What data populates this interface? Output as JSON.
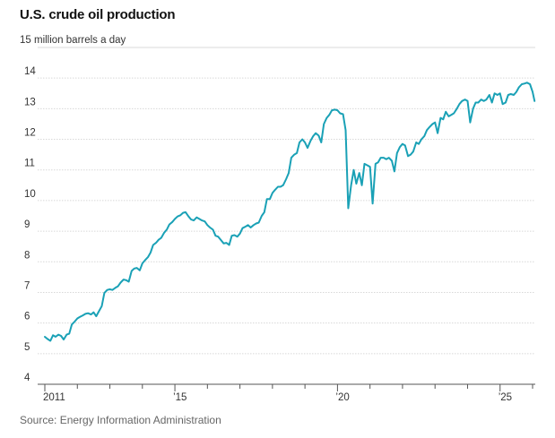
{
  "title": "U.S. crude oil production",
  "source": "Source: Energy Information Administration",
  "chart_data": {
    "type": "line",
    "title": "U.S. crude oil production",
    "ylabel": "million barrels a day",
    "unit_label": "15 million barrels a day",
    "xlabel": "",
    "ylim": [
      4,
      15
    ],
    "y_ticks": [
      4,
      5,
      6,
      7,
      8,
      9,
      10,
      11,
      12,
      13,
      14
    ],
    "xlim": [
      2011.0,
      2026.0
    ],
    "x_ticks": [
      {
        "year": 2011,
        "label": "2011"
      },
      {
        "year": 2015,
        "label": "’15"
      },
      {
        "year": 2020,
        "label": "’20"
      },
      {
        "year": 2025,
        "label": "’25"
      }
    ],
    "x_minor_ticks": [
      2012,
      2013,
      2014,
      2016,
      2017,
      2018,
      2019,
      2021,
      2022,
      2023,
      2024,
      2026
    ],
    "line_color": "#1aa1b6",
    "series": [
      {
        "name": "U.S. crude oil production",
        "points": [
          [
            2011.0,
            5.55
          ],
          [
            2011.08,
            5.48
          ],
          [
            2011.17,
            5.42
          ],
          [
            2011.25,
            5.6
          ],
          [
            2011.33,
            5.55
          ],
          [
            2011.42,
            5.62
          ],
          [
            2011.5,
            5.58
          ],
          [
            2011.58,
            5.46
          ],
          [
            2011.67,
            5.62
          ],
          [
            2011.75,
            5.65
          ],
          [
            2011.83,
            5.95
          ],
          [
            2011.92,
            6.05
          ],
          [
            2012.0,
            6.15
          ],
          [
            2012.08,
            6.2
          ],
          [
            2012.17,
            6.25
          ],
          [
            2012.25,
            6.3
          ],
          [
            2012.33,
            6.32
          ],
          [
            2012.42,
            6.28
          ],
          [
            2012.5,
            6.35
          ],
          [
            2012.58,
            6.22
          ],
          [
            2012.67,
            6.4
          ],
          [
            2012.75,
            6.55
          ],
          [
            2012.83,
            6.98
          ],
          [
            2012.92,
            7.08
          ],
          [
            2013.0,
            7.1
          ],
          [
            2013.08,
            7.08
          ],
          [
            2013.17,
            7.15
          ],
          [
            2013.25,
            7.2
          ],
          [
            2013.33,
            7.32
          ],
          [
            2013.42,
            7.42
          ],
          [
            2013.5,
            7.4
          ],
          [
            2013.58,
            7.35
          ],
          [
            2013.67,
            7.7
          ],
          [
            2013.75,
            7.78
          ],
          [
            2013.83,
            7.8
          ],
          [
            2013.92,
            7.72
          ],
          [
            2014.0,
            7.95
          ],
          [
            2014.08,
            8.05
          ],
          [
            2014.17,
            8.15
          ],
          [
            2014.25,
            8.3
          ],
          [
            2014.33,
            8.55
          ],
          [
            2014.42,
            8.62
          ],
          [
            2014.5,
            8.72
          ],
          [
            2014.58,
            8.78
          ],
          [
            2014.67,
            8.95
          ],
          [
            2014.75,
            9.05
          ],
          [
            2014.83,
            9.22
          ],
          [
            2014.92,
            9.3
          ],
          [
            2015.0,
            9.4
          ],
          [
            2015.08,
            9.48
          ],
          [
            2015.17,
            9.52
          ],
          [
            2015.25,
            9.6
          ],
          [
            2015.33,
            9.62
          ],
          [
            2015.42,
            9.48
          ],
          [
            2015.5,
            9.38
          ],
          [
            2015.58,
            9.35
          ],
          [
            2015.67,
            9.45
          ],
          [
            2015.75,
            9.4
          ],
          [
            2015.83,
            9.35
          ],
          [
            2015.92,
            9.32
          ],
          [
            2016.0,
            9.2
          ],
          [
            2016.08,
            9.12
          ],
          [
            2016.17,
            9.05
          ],
          [
            2016.25,
            8.85
          ],
          [
            2016.33,
            8.82
          ],
          [
            2016.42,
            8.7
          ],
          [
            2016.5,
            8.6
          ],
          [
            2016.58,
            8.62
          ],
          [
            2016.67,
            8.55
          ],
          [
            2016.75,
            8.85
          ],
          [
            2016.83,
            8.87
          ],
          [
            2016.92,
            8.82
          ],
          [
            2017.0,
            8.92
          ],
          [
            2017.08,
            9.1
          ],
          [
            2017.17,
            9.15
          ],
          [
            2017.25,
            9.2
          ],
          [
            2017.33,
            9.12
          ],
          [
            2017.42,
            9.2
          ],
          [
            2017.5,
            9.25
          ],
          [
            2017.58,
            9.28
          ],
          [
            2017.67,
            9.5
          ],
          [
            2017.75,
            9.62
          ],
          [
            2017.83,
            10.05
          ],
          [
            2017.92,
            10.05
          ],
          [
            2018.0,
            10.25
          ],
          [
            2018.08,
            10.35
          ],
          [
            2018.17,
            10.45
          ],
          [
            2018.25,
            10.45
          ],
          [
            2018.33,
            10.5
          ],
          [
            2018.42,
            10.7
          ],
          [
            2018.5,
            10.9
          ],
          [
            2018.58,
            11.4
          ],
          [
            2018.67,
            11.5
          ],
          [
            2018.75,
            11.55
          ],
          [
            2018.83,
            11.9
          ],
          [
            2018.92,
            12.0
          ],
          [
            2019.0,
            11.9
          ],
          [
            2019.08,
            11.72
          ],
          [
            2019.17,
            11.95
          ],
          [
            2019.25,
            12.1
          ],
          [
            2019.33,
            12.2
          ],
          [
            2019.42,
            12.12
          ],
          [
            2019.5,
            11.9
          ],
          [
            2019.58,
            12.5
          ],
          [
            2019.67,
            12.7
          ],
          [
            2019.75,
            12.8
          ],
          [
            2019.83,
            12.95
          ],
          [
            2019.92,
            12.97
          ],
          [
            2020.0,
            12.95
          ],
          [
            2020.08,
            12.85
          ],
          [
            2020.17,
            12.82
          ],
          [
            2020.25,
            12.3
          ],
          [
            2020.33,
            9.75
          ],
          [
            2020.42,
            10.5
          ],
          [
            2020.5,
            11.0
          ],
          [
            2020.58,
            10.55
          ],
          [
            2020.67,
            10.9
          ],
          [
            2020.75,
            10.5
          ],
          [
            2020.83,
            11.2
          ],
          [
            2020.92,
            11.15
          ],
          [
            2021.0,
            11.1
          ],
          [
            2021.08,
            9.9
          ],
          [
            2021.17,
            11.2
          ],
          [
            2021.25,
            11.25
          ],
          [
            2021.33,
            11.4
          ],
          [
            2021.42,
            11.4
          ],
          [
            2021.5,
            11.35
          ],
          [
            2021.58,
            11.4
          ],
          [
            2021.67,
            11.3
          ],
          [
            2021.75,
            10.95
          ],
          [
            2021.83,
            11.55
          ],
          [
            2021.92,
            11.75
          ],
          [
            2022.0,
            11.85
          ],
          [
            2022.08,
            11.8
          ],
          [
            2022.17,
            11.45
          ],
          [
            2022.25,
            11.5
          ],
          [
            2022.33,
            11.6
          ],
          [
            2022.42,
            11.9
          ],
          [
            2022.5,
            11.85
          ],
          [
            2022.58,
            12.0
          ],
          [
            2022.67,
            12.1
          ],
          [
            2022.75,
            12.3
          ],
          [
            2022.83,
            12.4
          ],
          [
            2022.92,
            12.5
          ],
          [
            2023.0,
            12.55
          ],
          [
            2023.08,
            12.2
          ],
          [
            2023.17,
            12.7
          ],
          [
            2023.25,
            12.65
          ],
          [
            2023.33,
            12.9
          ],
          [
            2023.42,
            12.75
          ],
          [
            2023.5,
            12.8
          ],
          [
            2023.58,
            12.85
          ],
          [
            2023.67,
            13.0
          ],
          [
            2023.75,
            13.15
          ],
          [
            2023.83,
            13.25
          ],
          [
            2023.92,
            13.3
          ],
          [
            2024.0,
            13.25
          ],
          [
            2024.08,
            12.55
          ],
          [
            2024.17,
            13.0
          ],
          [
            2024.25,
            13.2
          ],
          [
            2024.33,
            13.2
          ],
          [
            2024.42,
            13.3
          ],
          [
            2024.5,
            13.25
          ],
          [
            2024.58,
            13.3
          ],
          [
            2024.67,
            13.45
          ],
          [
            2024.75,
            13.2
          ],
          [
            2024.83,
            13.5
          ],
          [
            2024.92,
            13.45
          ],
          [
            2025.0,
            13.5
          ],
          [
            2025.08,
            13.15
          ],
          [
            2025.17,
            13.2
          ],
          [
            2025.25,
            13.45
          ],
          [
            2025.33,
            13.48
          ],
          [
            2025.42,
            13.45
          ],
          [
            2025.5,
            13.55
          ],
          [
            2025.58,
            13.7
          ],
          [
            2025.67,
            13.8
          ],
          [
            2025.75,
            13.82
          ],
          [
            2025.83,
            13.85
          ],
          [
            2025.92,
            13.8
          ],
          [
            2026.0,
            13.55
          ],
          [
            2026.06,
            13.25
          ]
        ]
      }
    ]
  }
}
